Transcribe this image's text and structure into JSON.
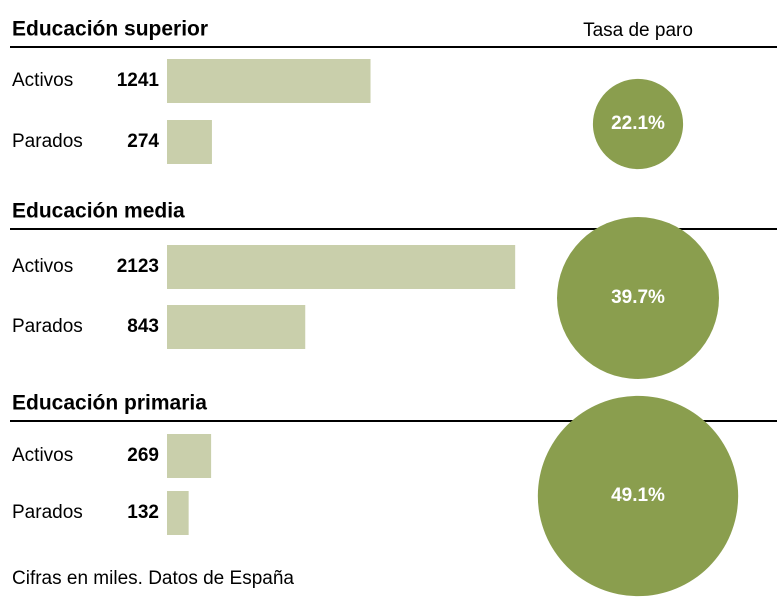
{
  "chart_data": {
    "type": "bar-bubble",
    "rate_title": "Tasa de paro",
    "bar_color": "#c9cfab",
    "bubble_color": "#8a9e4e",
    "groups": [
      {
        "title": "Educación superior",
        "categories": [
          "Activos",
          "Parados"
        ],
        "values": [
          1241,
          274
        ],
        "rate": 22.1,
        "rate_label": "22.1%"
      },
      {
        "title": "Educación media",
        "categories": [
          "Activos",
          "Parados"
        ],
        "values": [
          2123,
          843
        ],
        "rate": 39.7,
        "rate_label": "39.7%"
      },
      {
        "title": "Educación primaria",
        "categories": [
          "Activos",
          "Parados"
        ],
        "values": [
          269,
          132
        ],
        "rate": 49.1,
        "rate_label": "49.1%"
      }
    ],
    "note": "Cifras en miles. Datos de España"
  }
}
